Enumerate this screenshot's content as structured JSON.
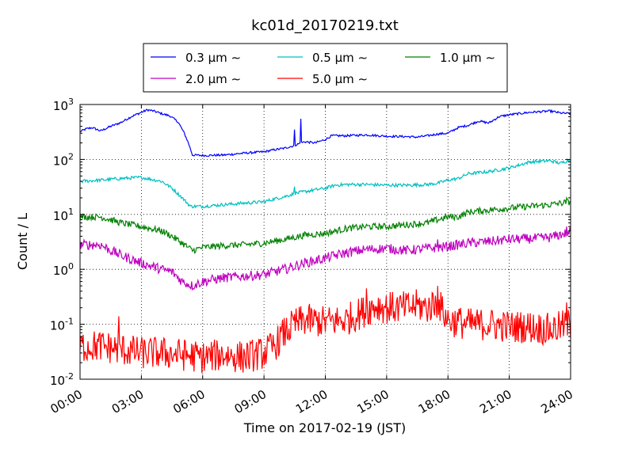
{
  "chart_data": {
    "type": "line",
    "title": "kc01d_20170219.txt",
    "xlabel": "Time on 2017-02-19 (JST)",
    "ylabel": "Count / L",
    "x_unit": "hours",
    "xlim": [
      0,
      24
    ],
    "ylim": [
      0.01,
      1000
    ],
    "yscale": "log",
    "grid": true,
    "legend_position": "top-center-outside",
    "x_ticks": [
      {
        "value": 0,
        "label": "00:00"
      },
      {
        "value": 3,
        "label": "03:00"
      },
      {
        "value": 6,
        "label": "06:00"
      },
      {
        "value": 9,
        "label": "09:00"
      },
      {
        "value": 12,
        "label": "12:00"
      },
      {
        "value": 15,
        "label": "15:00"
      },
      {
        "value": 18,
        "label": "18:00"
      },
      {
        "value": 21,
        "label": "21:00"
      },
      {
        "value": 24,
        "label": "24:00"
      }
    ],
    "y_ticks": [
      {
        "value": 0.01,
        "base": "10",
        "exp": "-2"
      },
      {
        "value": 0.1,
        "base": "10",
        "exp": "-1"
      },
      {
        "value": 1,
        "base": "10",
        "exp": "0"
      },
      {
        "value": 10,
        "base": "10",
        "exp": "1"
      },
      {
        "value": 100,
        "base": "10",
        "exp": "2"
      },
      {
        "value": 1000,
        "base": "10",
        "exp": "3"
      }
    ],
    "series": [
      {
        "name": "0.3 µm ∼",
        "color": "#0000ff",
        "noise": 0.02,
        "points": [
          [
            0,
            320
          ],
          [
            0.3,
            360
          ],
          [
            0.6,
            380
          ],
          [
            1,
            330
          ],
          [
            1.5,
            400
          ],
          [
            2,
            470
          ],
          [
            2.5,
            600
          ],
          [
            3,
            720
          ],
          [
            3.3,
            800
          ],
          [
            3.6,
            760
          ],
          [
            4,
            680
          ],
          [
            4.4,
            620
          ],
          [
            4.8,
            480
          ],
          [
            5.1,
            300
          ],
          [
            5.3,
            200
          ],
          [
            5.5,
            120
          ],
          [
            6,
            118
          ],
          [
            7,
            120
          ],
          [
            8,
            130
          ],
          [
            9,
            138
          ],
          [
            9.5,
            150
          ],
          [
            10,
            160
          ],
          [
            10.5,
            180
          ],
          [
            10.8,
            200
          ],
          [
            11,
            210
          ],
          [
            11.5,
            200
          ],
          [
            12,
            230
          ],
          [
            12.3,
            270
          ],
          [
            13,
            270
          ],
          [
            14,
            280
          ],
          [
            15,
            265
          ],
          [
            16,
            260
          ],
          [
            16.5,
            255
          ],
          [
            17,
            270
          ],
          [
            17.5,
            290
          ],
          [
            18,
            300
          ],
          [
            18.5,
            380
          ],
          [
            19,
            420
          ],
          [
            19.5,
            500
          ],
          [
            20,
            460
          ],
          [
            20.5,
            600
          ],
          [
            21,
            650
          ],
          [
            22,
            720
          ],
          [
            23,
            760
          ],
          [
            23.5,
            700
          ],
          [
            24,
            680
          ]
        ],
        "spikes": [
          [
            10.5,
            350
          ],
          [
            10.8,
            550
          ]
        ]
      },
      {
        "name": "0.5 µm ∼",
        "color": "#00bfbf",
        "noise": 0.03,
        "points": [
          [
            0,
            40
          ],
          [
            1,
            42
          ],
          [
            2,
            45
          ],
          [
            3,
            47
          ],
          [
            4,
            40
          ],
          [
            4.5,
            30
          ],
          [
            5,
            20
          ],
          [
            5.4,
            14
          ],
          [
            6,
            14
          ],
          [
            7,
            15
          ],
          [
            8,
            16
          ],
          [
            9,
            17
          ],
          [
            9.5,
            19
          ],
          [
            10,
            21
          ],
          [
            10.5,
            24
          ],
          [
            11,
            26
          ],
          [
            12,
            30
          ],
          [
            12.5,
            34
          ],
          [
            13,
            35
          ],
          [
            14,
            35
          ],
          [
            15,
            34
          ],
          [
            16,
            34
          ],
          [
            17,
            35
          ],
          [
            17.5,
            37
          ],
          [
            18,
            42
          ],
          [
            18.5,
            45
          ],
          [
            19,
            55
          ],
          [
            20,
            60
          ],
          [
            21,
            70
          ],
          [
            22,
            90
          ],
          [
            23,
            95
          ],
          [
            23.5,
            85
          ],
          [
            24,
            100
          ]
        ],
        "spikes": [
          [
            10.5,
            32
          ]
        ]
      },
      {
        "name": "1.0 µm ∼",
        "color": "#008000",
        "noise": 0.06,
        "points": [
          [
            0,
            9
          ],
          [
            1,
            9
          ],
          [
            1.5,
            8
          ],
          [
            2,
            7
          ],
          [
            3,
            6
          ],
          [
            4,
            5
          ],
          [
            4.5,
            4
          ],
          [
            5,
            3
          ],
          [
            5.5,
            2.2
          ],
          [
            6,
            2.5
          ],
          [
            7,
            2.7
          ],
          [
            8,
            2.8
          ],
          [
            9,
            3
          ],
          [
            10,
            3.5
          ],
          [
            11,
            4.2
          ],
          [
            12,
            4.5
          ],
          [
            13,
            5.5
          ],
          [
            14,
            6
          ],
          [
            15,
            6
          ],
          [
            16,
            6.5
          ],
          [
            17,
            7
          ],
          [
            17.5,
            8
          ],
          [
            18,
            9
          ],
          [
            18.5,
            9
          ],
          [
            19,
            11
          ],
          [
            20,
            12
          ],
          [
            21,
            13
          ],
          [
            22,
            14
          ],
          [
            23,
            15
          ],
          [
            24,
            17
          ]
        ],
        "spikes": [
          [
            23.8,
            20
          ]
        ]
      },
      {
        "name": "2.0 µm ∼",
        "color": "#bf00bf",
        "noise": 0.09,
        "points": [
          [
            0,
            2.8
          ],
          [
            1,
            2.8
          ],
          [
            1.5,
            2.2
          ],
          [
            2,
            1.8
          ],
          [
            3,
            1.3
          ],
          [
            4,
            1
          ],
          [
            4.5,
            0.9
          ],
          [
            5,
            0.6
          ],
          [
            5.5,
            0.5
          ],
          [
            6,
            0.6
          ],
          [
            7,
            0.7
          ],
          [
            8,
            0.75
          ],
          [
            9,
            0.8
          ],
          [
            10,
            1
          ],
          [
            11,
            1.3
          ],
          [
            12,
            1.6
          ],
          [
            13,
            2
          ],
          [
            14,
            2.3
          ],
          [
            15,
            2.4
          ],
          [
            16,
            2.2
          ],
          [
            17,
            2.4
          ],
          [
            18,
            2.6
          ],
          [
            19,
            3
          ],
          [
            20,
            3.2
          ],
          [
            21,
            3.5
          ],
          [
            22,
            3.6
          ],
          [
            23,
            3.8
          ],
          [
            24,
            4.8
          ]
        ],
        "spikes": [
          [
            17.5,
            3.5
          ],
          [
            23.8,
            6
          ]
        ]
      },
      {
        "name": "5.0 µm ∼",
        "color": "#ff0000",
        "noise": 0.3,
        "points": [
          [
            0,
            0.04
          ],
          [
            1,
            0.04
          ],
          [
            2,
            0.035
          ],
          [
            3,
            0.03
          ],
          [
            4,
            0.03
          ],
          [
            5,
            0.028
          ],
          [
            6,
            0.025
          ],
          [
            7,
            0.028
          ],
          [
            8,
            0.025
          ],
          [
            9,
            0.03
          ],
          [
            9.5,
            0.04
          ],
          [
            10,
            0.07
          ],
          [
            10.5,
            0.1
          ],
          [
            11,
            0.12
          ],
          [
            12,
            0.11
          ],
          [
            13,
            0.12
          ],
          [
            14,
            0.18
          ],
          [
            14.5,
            0.22
          ],
          [
            15,
            0.2
          ],
          [
            16,
            0.2
          ],
          [
            16.5,
            0.22
          ],
          [
            17,
            0.2
          ],
          [
            17.5,
            0.25
          ],
          [
            18,
            0.12
          ],
          [
            19,
            0.1
          ],
          [
            20,
            0.1
          ],
          [
            21,
            0.09
          ],
          [
            22,
            0.09
          ],
          [
            23,
            0.08
          ],
          [
            24,
            0.1
          ]
        ],
        "spikes": [
          [
            1.9,
            0.14
          ],
          [
            14,
            0.45
          ],
          [
            17.5,
            0.5
          ],
          [
            18.6,
            0.15
          ],
          [
            23.8,
            0.25
          ]
        ]
      }
    ]
  }
}
